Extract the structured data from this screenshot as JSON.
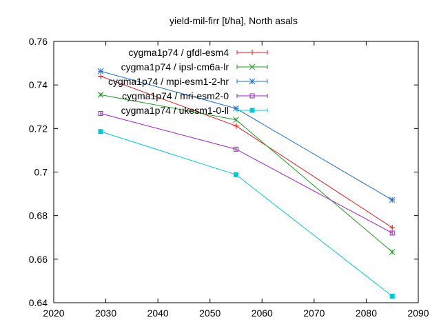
{
  "chart_data": {
    "type": "line",
    "title": "yield-mil-firr [t/ha], North asals",
    "xlabel": "",
    "ylabel": "",
    "xlim": [
      2020,
      2090
    ],
    "ylim": [
      0.64,
      0.76
    ],
    "x_ticks": [
      "2020",
      "2030",
      "2040",
      "2050",
      "2060",
      "2070",
      "2080",
      "2090"
    ],
    "y_ticks": [
      "0.64",
      "0.66",
      "0.68",
      "0.7",
      "0.72",
      "0.74",
      "0.76"
    ],
    "grid": false,
    "legend_position": "top-right",
    "x": [
      2029,
      2055,
      2085
    ],
    "series": [
      {
        "name": "cygma1p74 / gfdl-esm4",
        "color": "#e41a1c",
        "marker": "plus",
        "values": [
          0.744,
          0.7212,
          0.6745
        ]
      },
      {
        "name": "cygma1p74 / ipsl-cm6a-lr",
        "color": "#1a9a1a",
        "marker": "cross",
        "values": [
          0.7355,
          0.724,
          0.6633
        ]
      },
      {
        "name": "cygma1p74 / mpi-esm1-2-hr",
        "color": "#1f6fd1",
        "marker": "asterisk",
        "values": [
          0.7463,
          0.7292,
          0.6872
        ]
      },
      {
        "name": "cygma1p74 / mri-esm2-0",
        "color": "#9b1fc8",
        "marker": "open-square",
        "values": [
          0.7269,
          0.7105,
          0.672
        ]
      },
      {
        "name": "cygma1p74 / ukesm1-0-ll",
        "color": "#00c8d8",
        "marker": "filled-square",
        "values": [
          0.7186,
          0.6988,
          0.643
        ]
      }
    ]
  }
}
